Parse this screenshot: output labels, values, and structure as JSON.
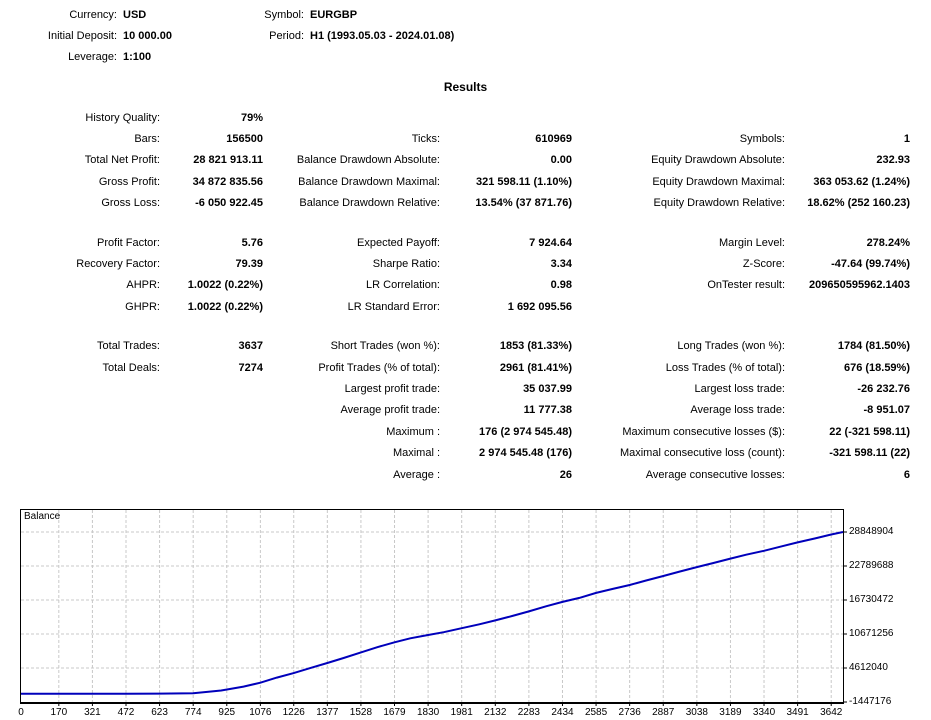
{
  "header": {
    "rows": [
      {
        "label": "Currency:",
        "value": "USD",
        "label2": "Symbol:",
        "value2": "EURGBP"
      },
      {
        "label": "Initial Deposit:",
        "value": "10 000.00",
        "label2": "Period:",
        "value2": "H1 (1993.05.03 - 2024.01.08)"
      },
      {
        "label": "Leverage:",
        "value": "1:100",
        "label2": "",
        "value2": ""
      }
    ]
  },
  "results_title": "Results",
  "stats_sections": [
    [
      [
        "History Quality:",
        "79%",
        "",
        "",
        "",
        ""
      ],
      [
        "Bars:",
        "156500",
        "Ticks:",
        "610969",
        "Symbols:",
        "1"
      ],
      [
        "Total Net Profit:",
        "28 821 913.11",
        "Balance Drawdown Absolute:",
        "0.00",
        "Equity Drawdown Absolute:",
        "232.93"
      ],
      [
        "Gross Profit:",
        "34 872 835.56",
        "Balance Drawdown Maximal:",
        "321 598.11 (1.10%)",
        "Equity Drawdown Maximal:",
        "363 053.62 (1.24%)"
      ],
      [
        "Gross Loss:",
        "-6 050 922.45",
        "Balance Drawdown Relative:",
        "13.54% (37 871.76)",
        "Equity Drawdown Relative:",
        "18.62% (252 160.23)"
      ]
    ],
    [
      [
        "Profit Factor:",
        "5.76",
        "Expected Payoff:",
        "7 924.64",
        "Margin Level:",
        "278.24%"
      ],
      [
        "Recovery Factor:",
        "79.39",
        "Sharpe Ratio:",
        "3.34",
        "Z-Score:",
        "-47.64 (99.74%)"
      ],
      [
        "AHPR:",
        "1.0022 (0.22%)",
        "LR Correlation:",
        "0.98",
        "OnTester result:",
        "209650595962.1403"
      ],
      [
        "GHPR:",
        "1.0022 (0.22%)",
        "LR Standard Error:",
        "1 692 095.56",
        "",
        ""
      ]
    ],
    [
      [
        "Total Trades:",
        "3637",
        "Short Trades (won %):",
        "1853 (81.33%)",
        "Long Trades (won %):",
        "1784 (81.50%)"
      ],
      [
        "Total Deals:",
        "7274",
        "Profit Trades (% of total):",
        "2961 (81.41%)",
        "Loss Trades (% of total):",
        "676 (18.59%)"
      ],
      [
        "",
        "",
        "Largest profit trade:",
        "35 037.99",
        "Largest loss trade:",
        "-26 232.76"
      ],
      [
        "",
        "",
        "Average profit trade:",
        "11 777.38",
        "Average loss trade:",
        "-8 951.07"
      ],
      [
        "",
        "",
        "Maximum :",
        "176 (2 974 545.48)",
        "Maximum consecutive losses ($):",
        "22 (-321 598.11)"
      ],
      [
        "",
        "",
        "Maximal :",
        "2 974 545.48 (176)",
        "Maximal consecutive loss (count):",
        "-321 598.11 (22)"
      ],
      [
        "",
        "",
        "Average :",
        "26",
        "Average consecutive losses:",
        "6"
      ]
    ]
  ],
  "chart_data": {
    "type": "line",
    "title": "Balance",
    "xlabel": "",
    "ylabel": "",
    "x_ticks": [
      0,
      170,
      321,
      472,
      623,
      774,
      925,
      1076,
      1226,
      1377,
      1528,
      1679,
      1830,
      1981,
      2132,
      2283,
      2434,
      2585,
      2736,
      2887,
      3038,
      3189,
      3340,
      3491,
      3642
    ],
    "y_ticks": [
      28848904,
      22789688,
      16730472,
      10671256,
      4612040,
      -1447176
    ],
    "x_range": [
      0,
      3695
    ],
    "y_range": [
      -1447176,
      32770000
    ],
    "grid": true,
    "legend_position": "none",
    "line_color": "#0000bb",
    "grid_color": "#c8c8c8",
    "series": [
      {
        "name": "Balance",
        "points": [
          [
            0,
            10000
          ],
          [
            170,
            11000
          ],
          [
            321,
            14000
          ],
          [
            472,
            22000
          ],
          [
            623,
            45000
          ],
          [
            774,
            120000
          ],
          [
            900,
            600000
          ],
          [
            1000,
            1300000
          ],
          [
            1076,
            2000000
          ],
          [
            1150,
            2900000
          ],
          [
            1226,
            3700000
          ],
          [
            1300,
            4600000
          ],
          [
            1377,
            5500000
          ],
          [
            1450,
            6400000
          ],
          [
            1528,
            7400000
          ],
          [
            1600,
            8300000
          ],
          [
            1679,
            9200000
          ],
          [
            1750,
            9900000
          ],
          [
            1830,
            10500000
          ],
          [
            1900,
            11000000
          ],
          [
            1981,
            11700000
          ],
          [
            2060,
            12400000
          ],
          [
            2132,
            13100000
          ],
          [
            2210,
            13900000
          ],
          [
            2283,
            14700000
          ],
          [
            2360,
            15600000
          ],
          [
            2434,
            16400000
          ],
          [
            2510,
            17100000
          ],
          [
            2585,
            18000000
          ],
          [
            2660,
            18700000
          ],
          [
            2736,
            19400000
          ],
          [
            2810,
            20200000
          ],
          [
            2887,
            21000000
          ],
          [
            2960,
            21800000
          ],
          [
            3038,
            22600000
          ],
          [
            3110,
            23300000
          ],
          [
            3189,
            24100000
          ],
          [
            3260,
            24800000
          ],
          [
            3340,
            25500000
          ],
          [
            3420,
            26300000
          ],
          [
            3491,
            27000000
          ],
          [
            3570,
            27700000
          ],
          [
            3642,
            28400000
          ],
          [
            3695,
            28848904
          ]
        ]
      }
    ]
  }
}
